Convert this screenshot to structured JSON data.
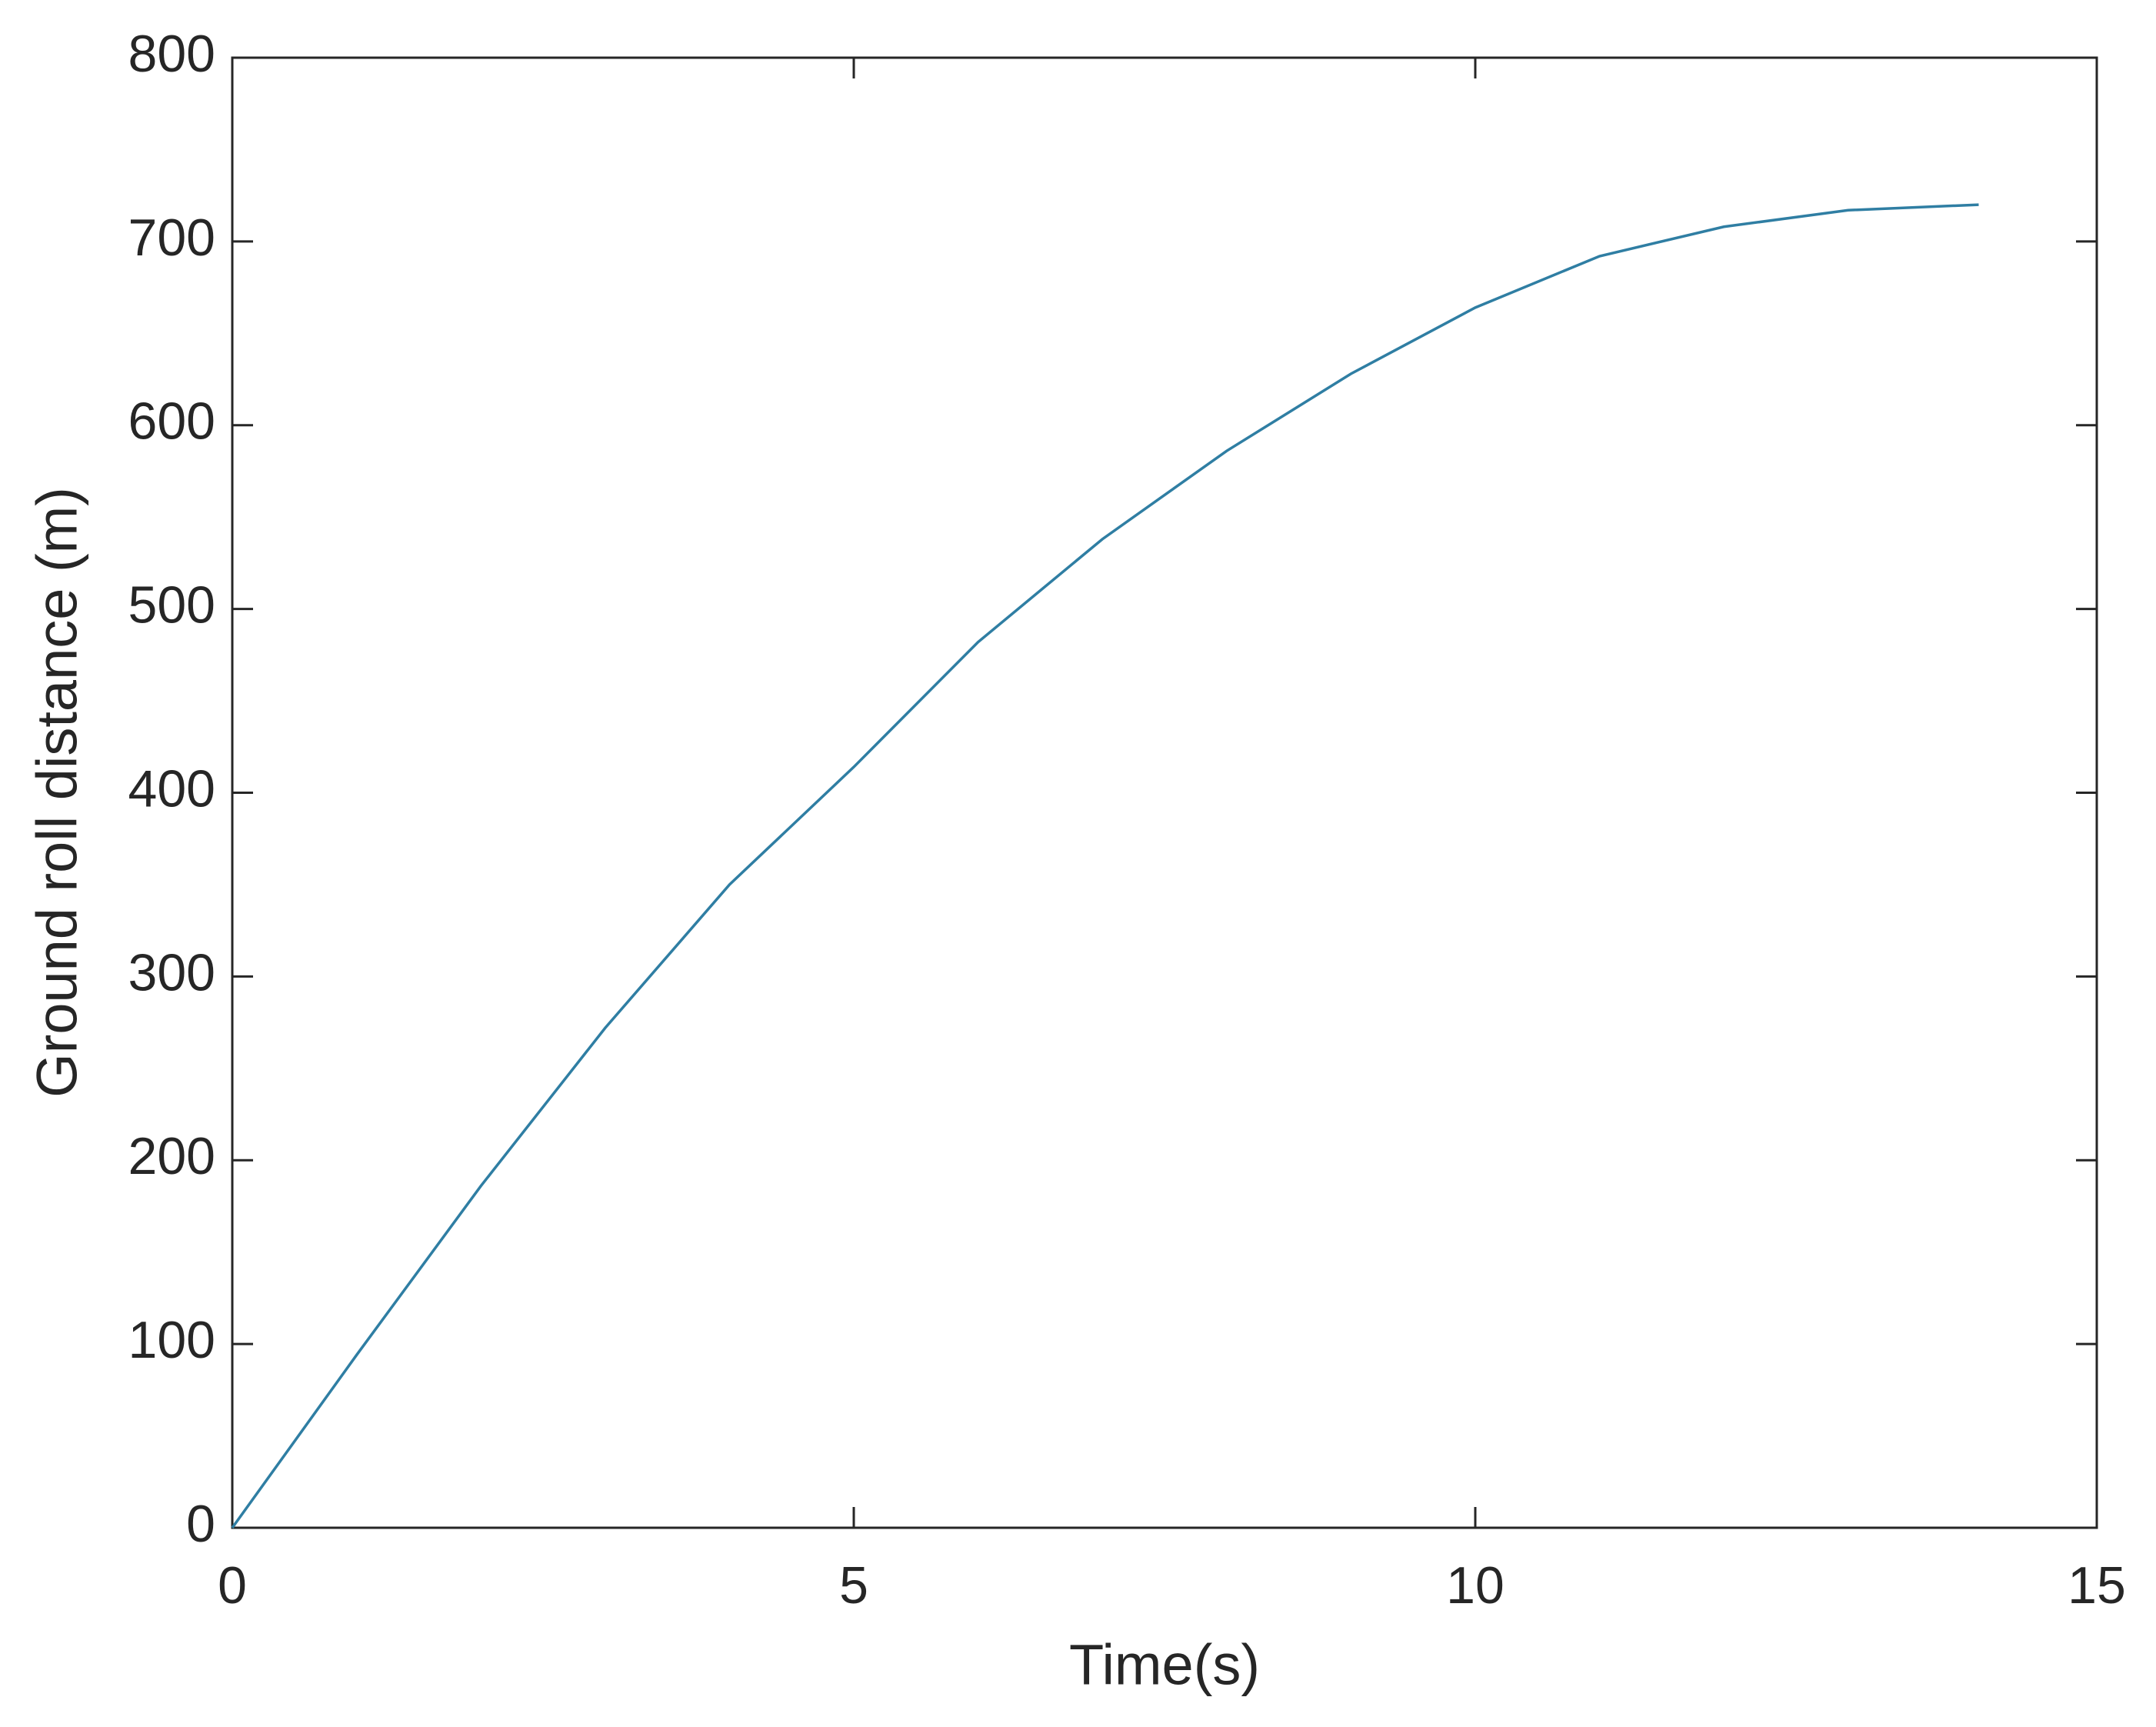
{
  "chart_data": {
    "type": "line",
    "x_label": "Time(s)",
    "y_label": "Ground roll distance (m)",
    "x": [
      0,
      1,
      2,
      3,
      4,
      5,
      6,
      7,
      8,
      9,
      10,
      11,
      12,
      13,
      14.05
    ],
    "series": [
      {
        "color": "#2f7ea3",
        "values": [
          0,
          94,
          186,
          272,
          350,
          414,
          482,
          538,
          586,
          628,
          664,
          692,
          708,
          717,
          720
        ]
      }
    ],
    "xlim": [
      0,
      15
    ],
    "xticks": [
      0,
      5,
      10,
      15
    ],
    "ylim": [
      0,
      800
    ],
    "yticks": [
      0,
      100,
      200,
      300,
      400,
      500,
      600,
      700,
      800
    ],
    "grid": false
  }
}
